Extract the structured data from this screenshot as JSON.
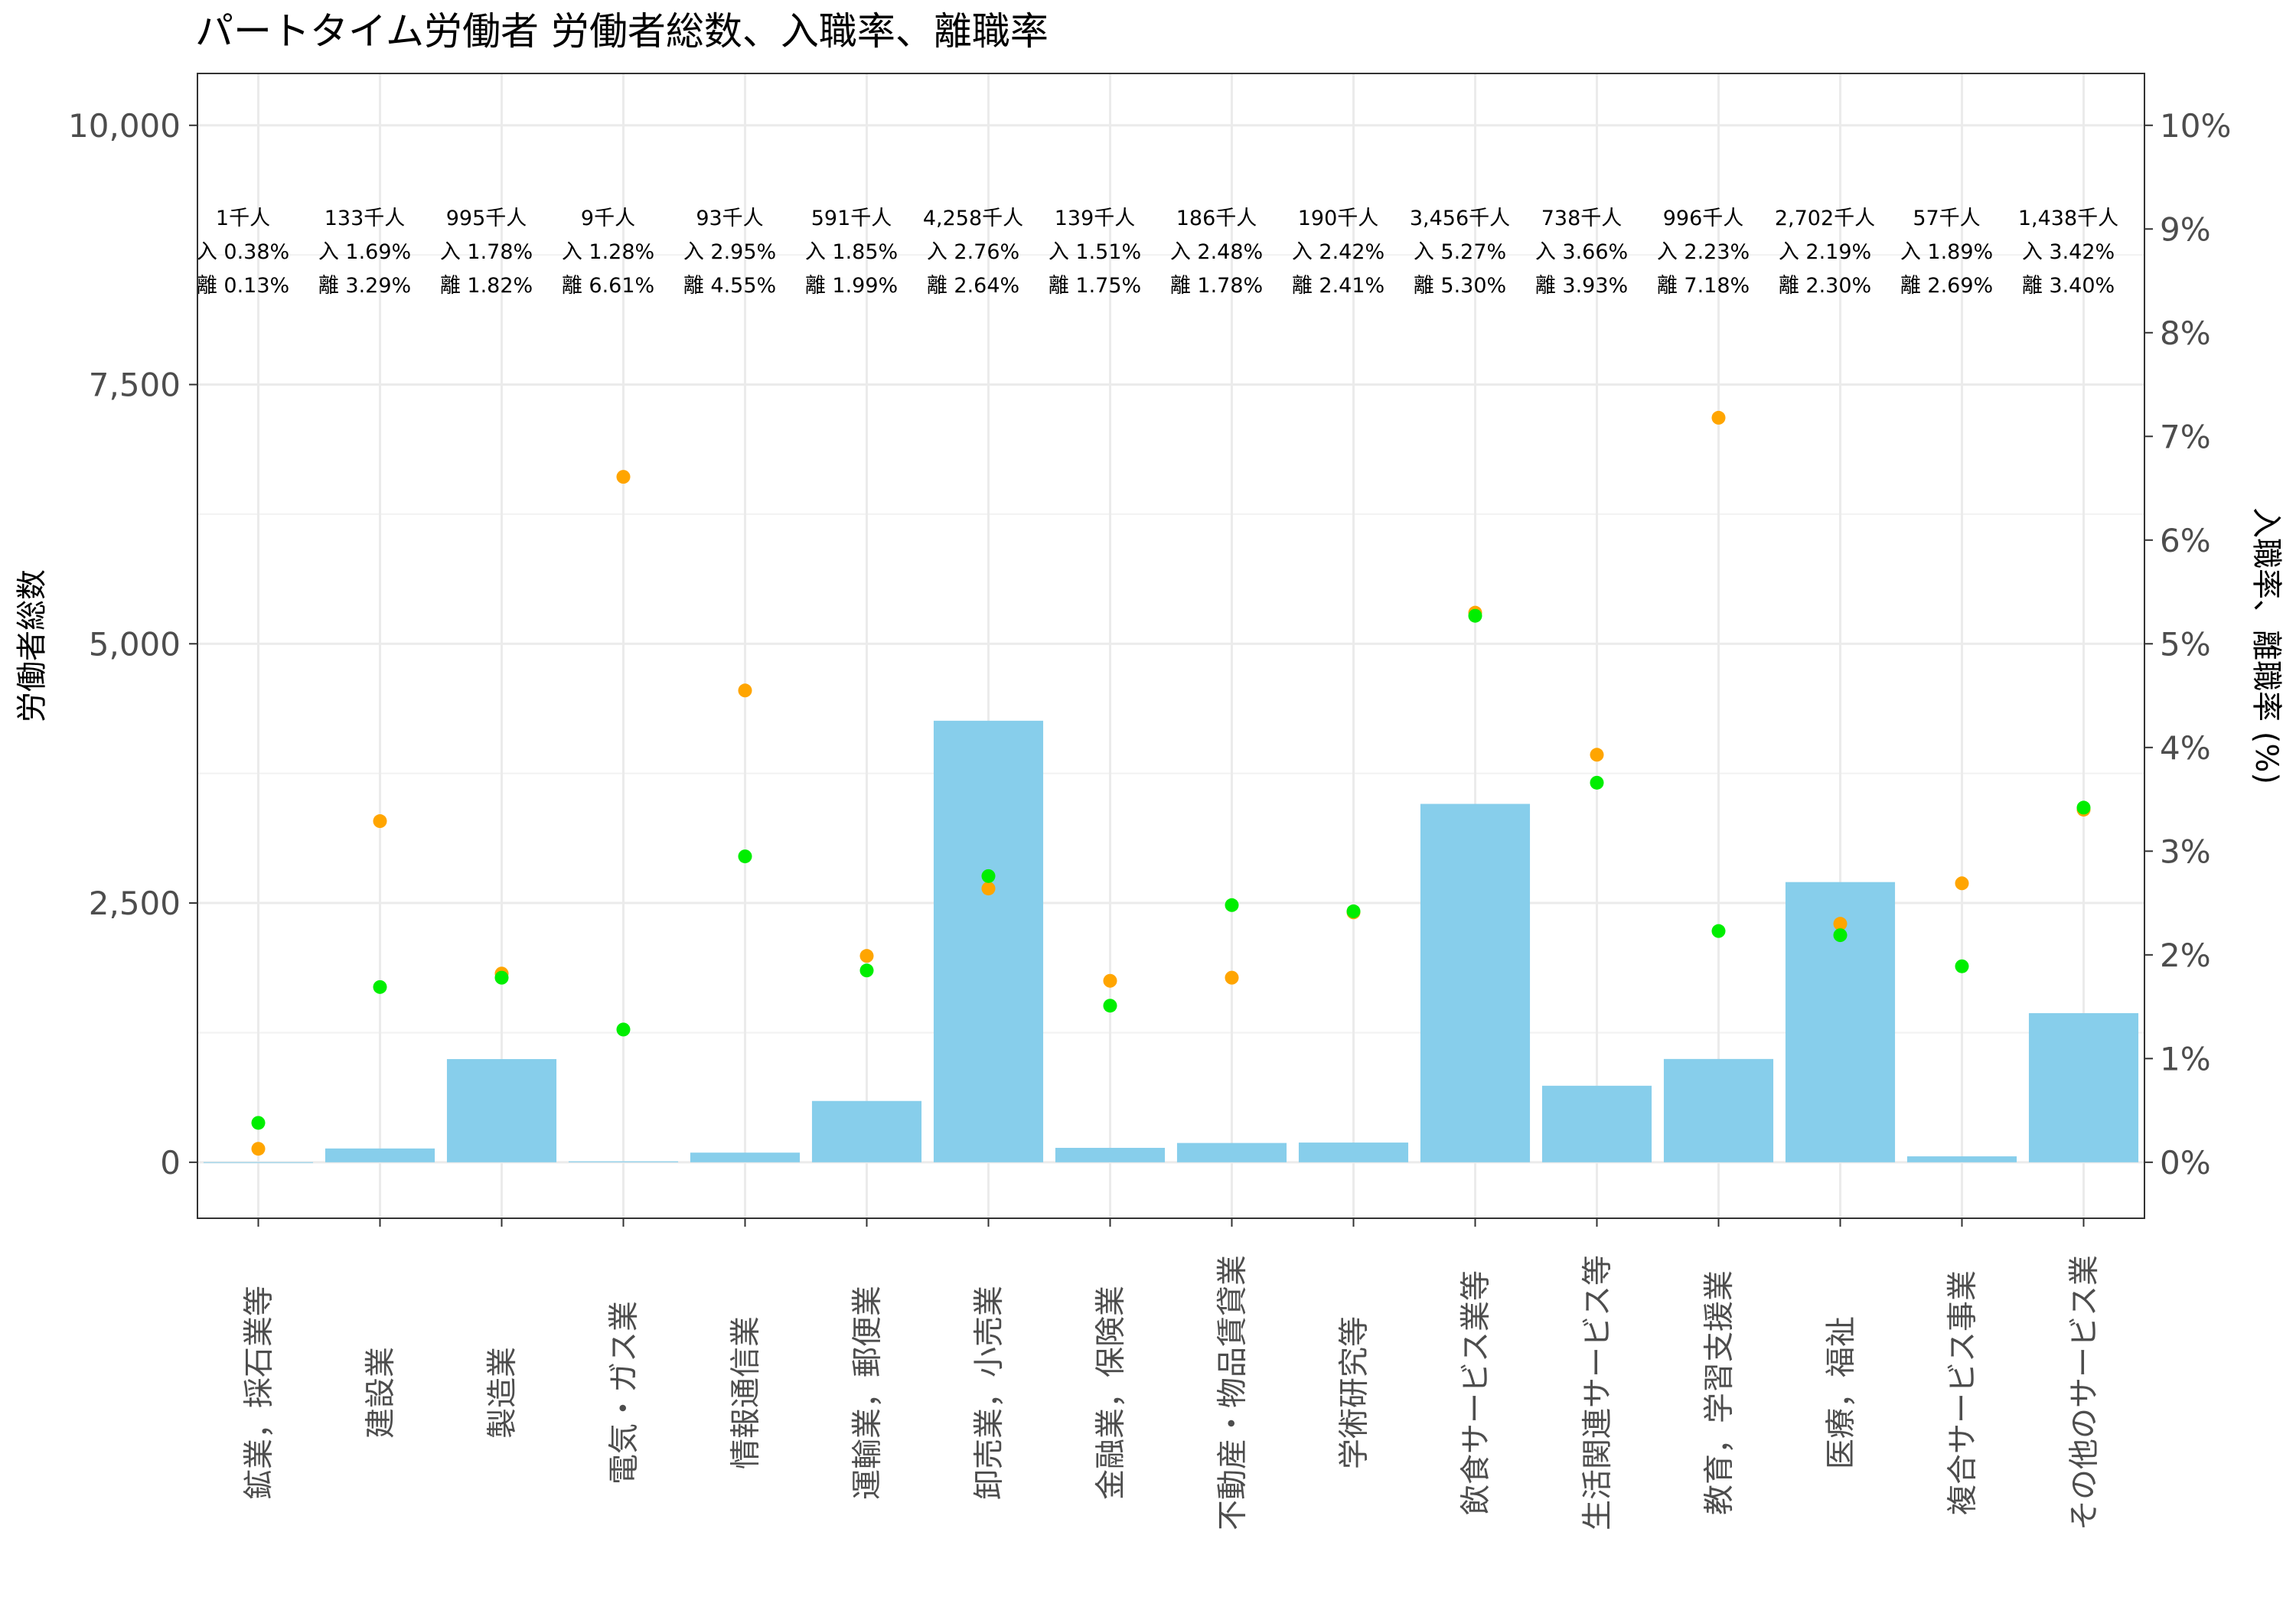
{
  "chart_data": {
    "type": "bar",
    "title": "パートタイム労働者 労働者総数、入職率、離職率",
    "ylabel": "労働者総数",
    "y2label": "入職率、離職率 (%)",
    "ylim": [
      -540,
      10500
    ],
    "y2lim": [
      -0.54,
      10.5
    ],
    "yticks": [
      "0",
      "2,500",
      "5,000",
      "7,500",
      "10,000"
    ],
    "y2ticks": [
      "0%",
      "1%",
      "2%",
      "3%",
      "4%",
      "5%",
      "6%",
      "7%",
      "8%",
      "9%",
      "10%"
    ],
    "grid": true,
    "colors": {
      "bar": "#87ceeb",
      "entry": "#00ee00",
      "exit": "#ffa500"
    },
    "categories": [
      "鉱業，採石業等",
      "建設業",
      "製造業",
      "電気・ガス業",
      "情報通信業",
      "運輸業，郵便業",
      "卸売業，小売業",
      "金融業，保険業",
      "不動産・物品賃貸業",
      "学術研究等",
      "飲食サービス業等",
      "生活関連サービス等",
      "教育，学習支援業",
      "医療，福祉",
      "複合サービス事業",
      "その他のサービス業"
    ],
    "series": [
      {
        "values": [
          1,
          133,
          995,
          9,
          93,
          591,
          4258,
          139,
          186,
          190,
          3456,
          738,
          996,
          2702,
          57,
          1438
        ]
      },
      {
        "values": [
          0.38,
          1.69,
          1.78,
          1.28,
          2.95,
          1.85,
          2.76,
          1.51,
          2.48,
          2.42,
          5.27,
          3.66,
          2.23,
          2.19,
          1.89,
          3.42
        ]
      },
      {
        "values": [
          0.13,
          3.29,
          1.82,
          6.61,
          4.55,
          1.99,
          2.64,
          1.75,
          1.78,
          2.41,
          5.3,
          3.93,
          7.18,
          2.3,
          2.69,
          3.4
        ]
      }
    ],
    "annotations": {
      "total": [
        "1千人",
        "133千人",
        "995千人",
        "9千人",
        "93千人",
        "591千人",
        "4,258千人",
        "139千人",
        "186千人",
        "190千人",
        "3,456千人",
        "738千人",
        "996千人",
        "2,702千人",
        "57千人",
        "1,438千人"
      ],
      "entry": [
        "入 0.38%",
        "入 1.69%",
        "入 1.78%",
        "入 1.28%",
        "入 2.95%",
        "入 1.85%",
        "入 2.76%",
        "入 1.51%",
        "入 2.48%",
        "入 2.42%",
        "入 5.27%",
        "入 3.66%",
        "入 2.23%",
        "入 2.19%",
        "入 1.89%",
        "入 3.42%"
      ],
      "exit": [
        "離 0.13%",
        "離 3.29%",
        "離 1.82%",
        "離 6.61%",
        "離 4.55%",
        "離 1.99%",
        "離 2.64%",
        "離 1.75%",
        "離 1.78%",
        "離 2.41%",
        "離 5.30%",
        "離 3.93%",
        "離 7.18%",
        "離 2.30%",
        "離 2.69%",
        "離 3.40%"
      ]
    }
  }
}
